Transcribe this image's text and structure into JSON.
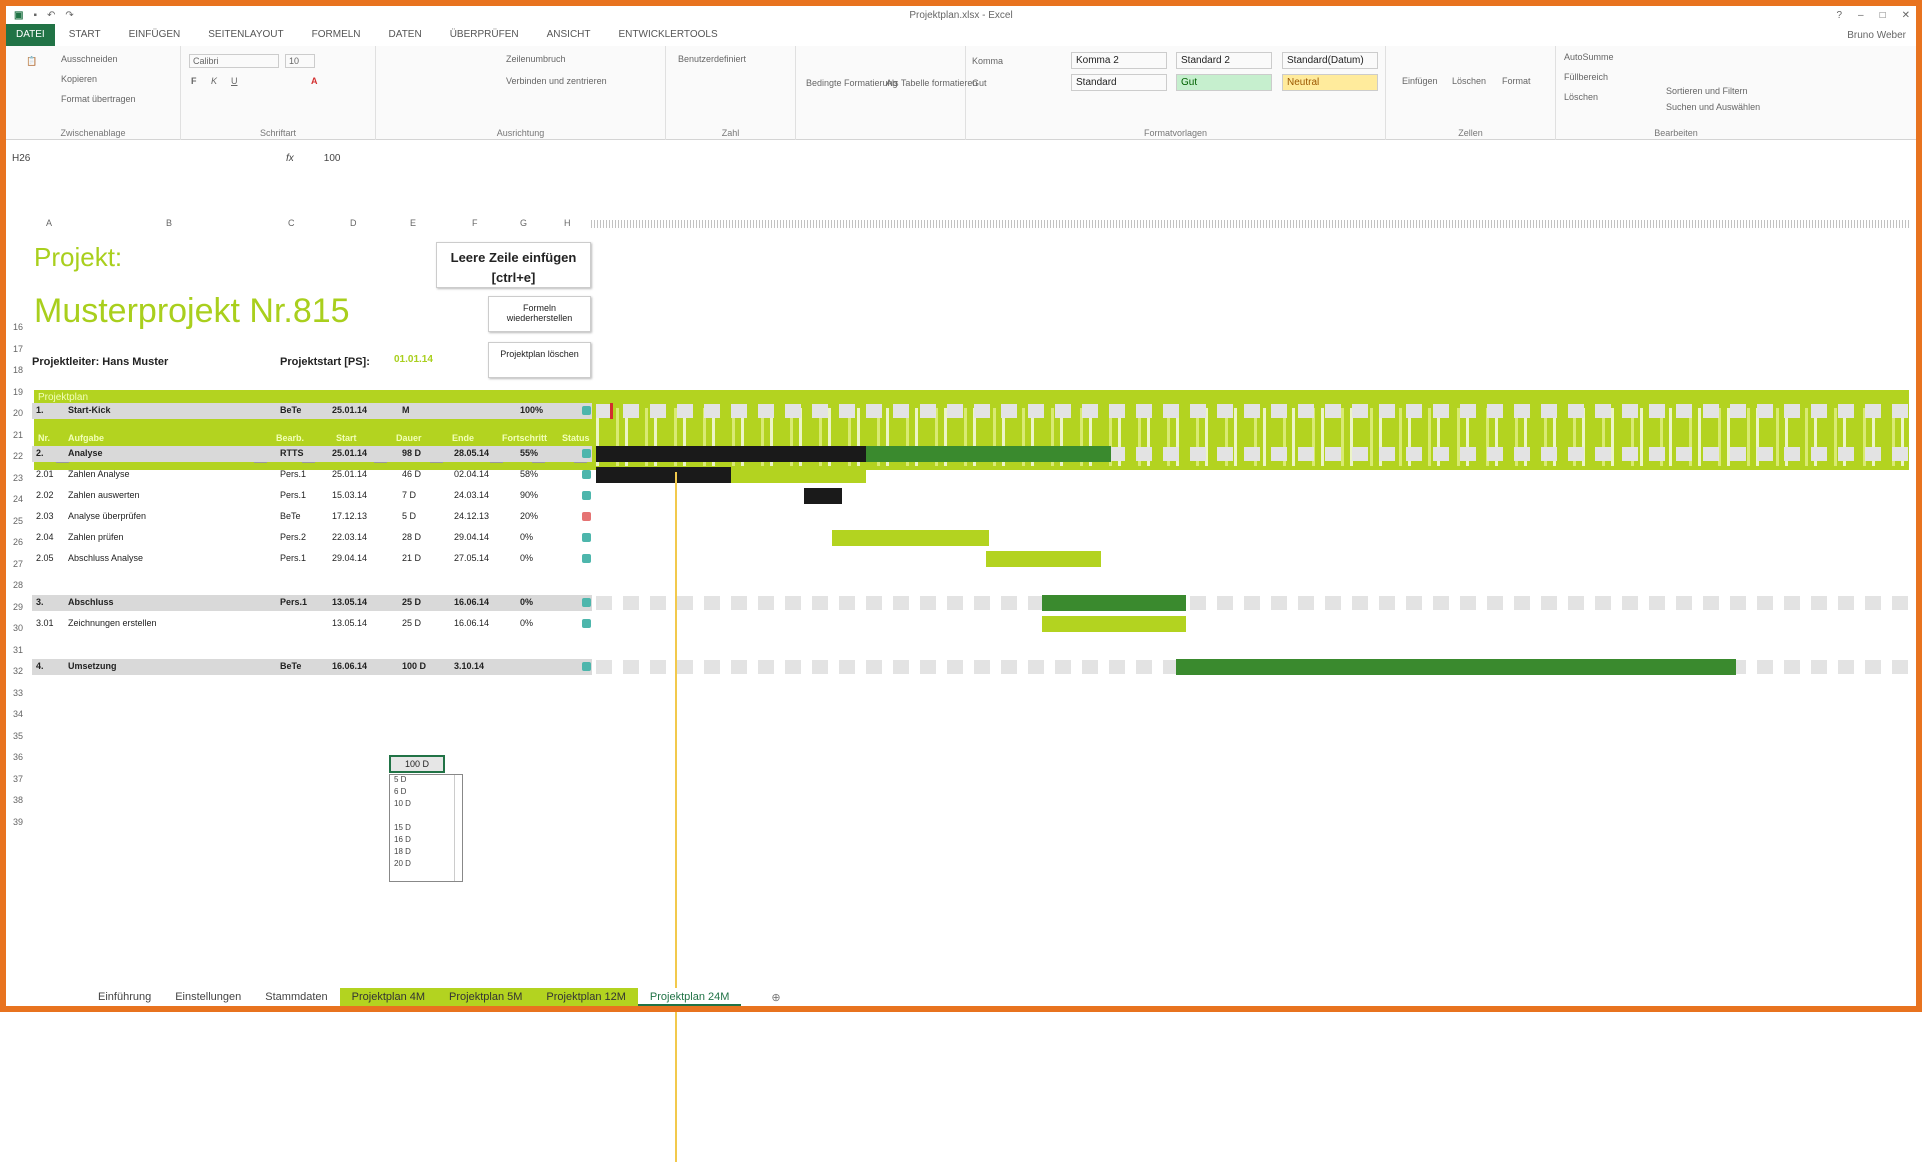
{
  "window": {
    "title": "Projektplan.xlsx - Excel",
    "user": "Bruno Weber"
  },
  "ribbon_tabs": [
    "DATEI",
    "START",
    "EINFÜGEN",
    "SEITENLAYOUT",
    "FORMELN",
    "DATEN",
    "ÜBERPRÜFEN",
    "ANSICHT",
    "ENTWICKLERTOOLS"
  ],
  "ribbon": {
    "clipboard": {
      "label": "Zwischenablage",
      "cut": "Ausschneiden",
      "copy": "Kopieren",
      "painter": "Format übertragen"
    },
    "font": {
      "label": "Schriftart",
      "name": "Calibri",
      "size": "10",
      "bold": "F",
      "italic": "K",
      "underline": "U"
    },
    "alignment": {
      "label": "Ausrichtung",
      "wrap": "Zeilenumbruch",
      "merge": "Verbinden und zentrieren"
    },
    "number": {
      "label": "Zahl",
      "format": "Benutzerdefiniert"
    },
    "cond": {
      "cond_label": "Bedingte Formatierung",
      "table_label": "Als Tabelle formatieren"
    },
    "styles": {
      "label": "Formatvorlagen",
      "s1": "Komma 2",
      "s2": "Standard 2",
      "s3": "Standard(Datum)",
      "s4": "Standard",
      "s5": "Gut",
      "s6": "Neutral",
      "b1": "Komma",
      "b2": "Gut"
    },
    "cells": {
      "label": "Zellen",
      "insert": "Einfügen",
      "delete": "Löschen",
      "format": "Format"
    },
    "edit": {
      "label": "Bearbeiten",
      "sum": "AutoSumme",
      "fill": "Füllbereich",
      "clear": "Löschen",
      "sort": "Sortieren und Filtern",
      "find": "Suchen und Auswählen"
    }
  },
  "formula_bar": {
    "name_box": "H26",
    "fx": "fx",
    "value": "100"
  },
  "sheet": {
    "project_label": "Projekt:",
    "project_name": "Musterprojekt Nr.815",
    "leader": "Projektleiter: Hans Muster",
    "start_label": "Projektstart [PS]:",
    "start_value": "01.01.14",
    "btn_insert_row": "Leere Zeile einfügen [ctrl+e]",
    "btn_restore": "Formeln wiederherstellen",
    "btn_delete": "Projektplan löschen",
    "header_caption": "Projektplan",
    "columns": [
      "Nr.",
      "Aufgabe",
      "Bearb.",
      "Start",
      "Dauer",
      "Ende",
      "Fortschritt",
      "Status"
    ],
    "row_numbers": [
      "16",
      "17",
      "18",
      "19",
      "20",
      "21",
      "22",
      "23",
      "24",
      "25",
      "26",
      "27",
      "28",
      "29",
      "30",
      "31",
      "32",
      "33",
      "34",
      "35",
      "36",
      "37",
      "38",
      "39"
    ]
  },
  "tasks": [
    {
      "nr": "1.",
      "name": "Start-Kick",
      "who": "BeTe",
      "start": "25.01.14",
      "dur": "M",
      "end": "",
      "pct": "100%",
      "group": true,
      "status": "#4db6ac"
    },
    {
      "nr": "2.",
      "name": "Analyse",
      "who": "RTTS",
      "start": "25.01.14",
      "dur": "98 D",
      "end": "28.05.14",
      "pct": "55%",
      "group": true,
      "status": "#4db6ac"
    },
    {
      "nr": "2.01",
      "name": "Zahlen Analyse",
      "who": "Pers.1",
      "start": "25.01.14",
      "dur": "46 D",
      "end": "02.04.14",
      "pct": "58%",
      "group": false,
      "status": "#4db6ac"
    },
    {
      "nr": "2.02",
      "name": "Zahlen auswerten",
      "who": "Pers.1",
      "start": "15.03.14",
      "dur": "7 D",
      "end": "24.03.14",
      "pct": "90%",
      "group": false,
      "status": "#4db6ac"
    },
    {
      "nr": "2.03",
      "name": "Analyse überprüfen",
      "who": "BeTe",
      "start": "17.12.13",
      "dur": "5 D",
      "end": "24.12.13",
      "pct": "20%",
      "group": false,
      "status": "#e57373"
    },
    {
      "nr": "2.04",
      "name": "Zahlen prüfen",
      "who": "Pers.2",
      "start": "22.03.14",
      "dur": "28 D",
      "end": "29.04.14",
      "pct": "0%",
      "group": false,
      "status": "#4db6ac"
    },
    {
      "nr": "2.05",
      "name": "Abschluss Analyse",
      "who": "Pers.1",
      "start": "29.04.14",
      "dur": "21 D",
      "end": "27.05.14",
      "pct": "0%",
      "group": false,
      "status": "#4db6ac"
    },
    {
      "nr": "3.",
      "name": "Abschluss",
      "who": "Pers.1",
      "start": "13.05.14",
      "dur": "25 D",
      "end": "16.06.14",
      "pct": "0%",
      "group": true,
      "status": "#4db6ac"
    },
    {
      "nr": "3.01",
      "name": "Zeichnungen erstellen",
      "who": "",
      "start": "13.05.14",
      "dur": "25 D",
      "end": "16.06.14",
      "pct": "0%",
      "group": false,
      "status": "#4db6ac"
    },
    {
      "nr": "4.",
      "name": "Umsetzung",
      "who": "BeTe",
      "start": "16.06.14",
      "dur": "100 D",
      "end": "3.10.14",
      "pct": "",
      "group": true,
      "status": "#4db6ac"
    }
  ],
  "dropdown": {
    "options": [
      "5 D",
      "6 D",
      "10 D",
      "",
      "15 D",
      "16 D",
      "18 D",
      "20 D"
    ]
  },
  "sheet_tabs": [
    "Einführung",
    "Einstellungen",
    "Stammdaten",
    "Projektplan 4M",
    "Projektplan 5M",
    "Projektplan 12M",
    "Projektplan 24M"
  ],
  "colors": {
    "accent_green": "#b3d320",
    "excel_green": "#217346",
    "bar_dark": "#1a1a1a",
    "bar_mid": "#3a8a2e",
    "frame": "#e8731f"
  }
}
